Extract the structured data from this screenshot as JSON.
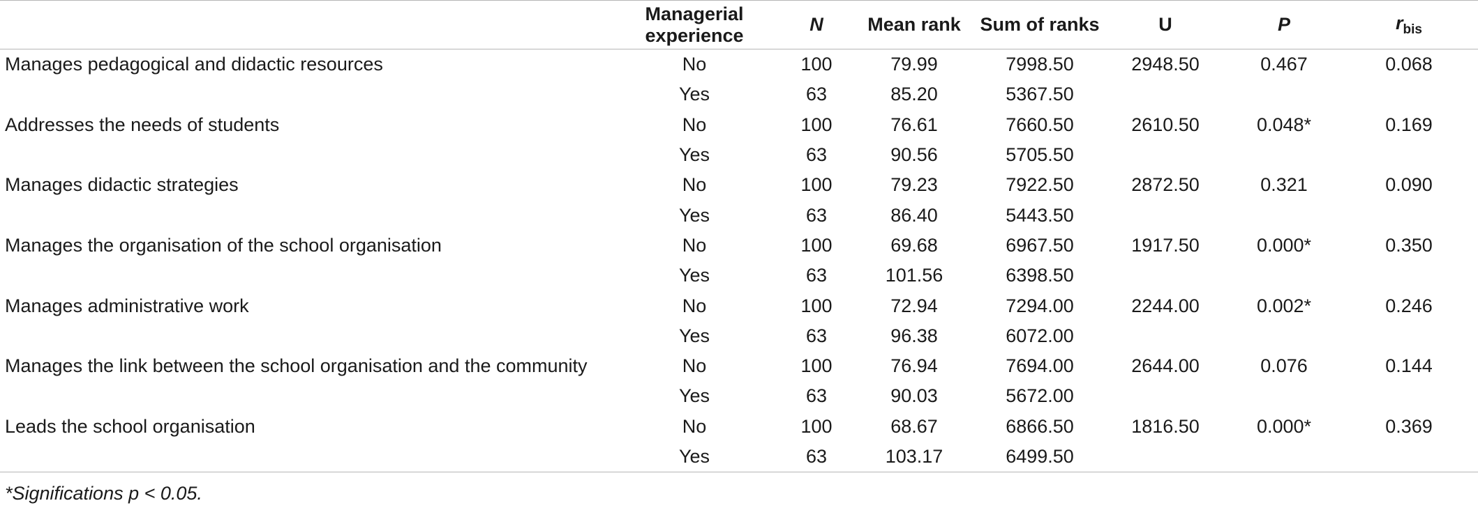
{
  "table": {
    "headers": {
      "item": "",
      "experience": "Managerial experience",
      "n": "N",
      "mean_rank": "Mean rank",
      "sum_ranks": "Sum of ranks",
      "u": "U",
      "p": "P",
      "r_main": "r",
      "r_sub": "bis"
    },
    "rows": [
      {
        "item": "Manages pedagogical and didactic resources",
        "experience": "No",
        "n": "100",
        "mean_rank": "79.99",
        "sum_ranks": "7998.50",
        "u": "2948.50",
        "p": "0.467",
        "r": "0.068"
      },
      {
        "item": "",
        "experience": "Yes",
        "n": "63",
        "mean_rank": "85.20",
        "sum_ranks": "5367.50",
        "u": "",
        "p": "",
        "r": ""
      },
      {
        "item": "Addresses the needs of students",
        "experience": "No",
        "n": "100",
        "mean_rank": "76.61",
        "sum_ranks": "7660.50",
        "u": "2610.50",
        "p": "0.048*",
        "r": "0.169"
      },
      {
        "item": "",
        "experience": "Yes",
        "n": "63",
        "mean_rank": "90.56",
        "sum_ranks": "5705.50",
        "u": "",
        "p": "",
        "r": ""
      },
      {
        "item": "Manages didactic strategies",
        "experience": "No",
        "n": "100",
        "mean_rank": "79.23",
        "sum_ranks": "7922.50",
        "u": "2872.50",
        "p": "0.321",
        "r": "0.090"
      },
      {
        "item": "",
        "experience": "Yes",
        "n": "63",
        "mean_rank": "86.40",
        "sum_ranks": "5443.50",
        "u": "",
        "p": "",
        "r": ""
      },
      {
        "item": "Manages the organisation of the school organisation",
        "experience": "No",
        "n": "100",
        "mean_rank": "69.68",
        "sum_ranks": "6967.50",
        "u": "1917.50",
        "p": "0.000*",
        "r": "0.350"
      },
      {
        "item": "",
        "experience": "Yes",
        "n": "63",
        "mean_rank": "101.56",
        "sum_ranks": "6398.50",
        "u": "",
        "p": "",
        "r": ""
      },
      {
        "item": "Manages administrative work",
        "experience": "No",
        "n": "100",
        "mean_rank": "72.94",
        "sum_ranks": "7294.00",
        "u": "2244.00",
        "p": "0.002*",
        "r": "0.246"
      },
      {
        "item": "",
        "experience": "Yes",
        "n": "63",
        "mean_rank": "96.38",
        "sum_ranks": "6072.00",
        "u": "",
        "p": "",
        "r": ""
      },
      {
        "item": "Manages the link between the school organisation and the community",
        "experience": "No",
        "n": "100",
        "mean_rank": "76.94",
        "sum_ranks": "7694.00",
        "u": "2644.00",
        "p": "0.076",
        "r": "0.144"
      },
      {
        "item": "",
        "experience": "Yes",
        "n": "63",
        "mean_rank": "90.03",
        "sum_ranks": "5672.00",
        "u": "",
        "p": "",
        "r": ""
      },
      {
        "item": "Leads the school organisation",
        "experience": "No",
        "n": "100",
        "mean_rank": "68.67",
        "sum_ranks": "6866.50",
        "u": "1816.50",
        "p": "0.000*",
        "r": "0.369"
      },
      {
        "item": "",
        "experience": "Yes",
        "n": "63",
        "mean_rank": "103.17",
        "sum_ranks": "6499.50",
        "u": "",
        "p": "",
        "r": ""
      }
    ]
  },
  "footnote": "*Significations p < 0.05."
}
